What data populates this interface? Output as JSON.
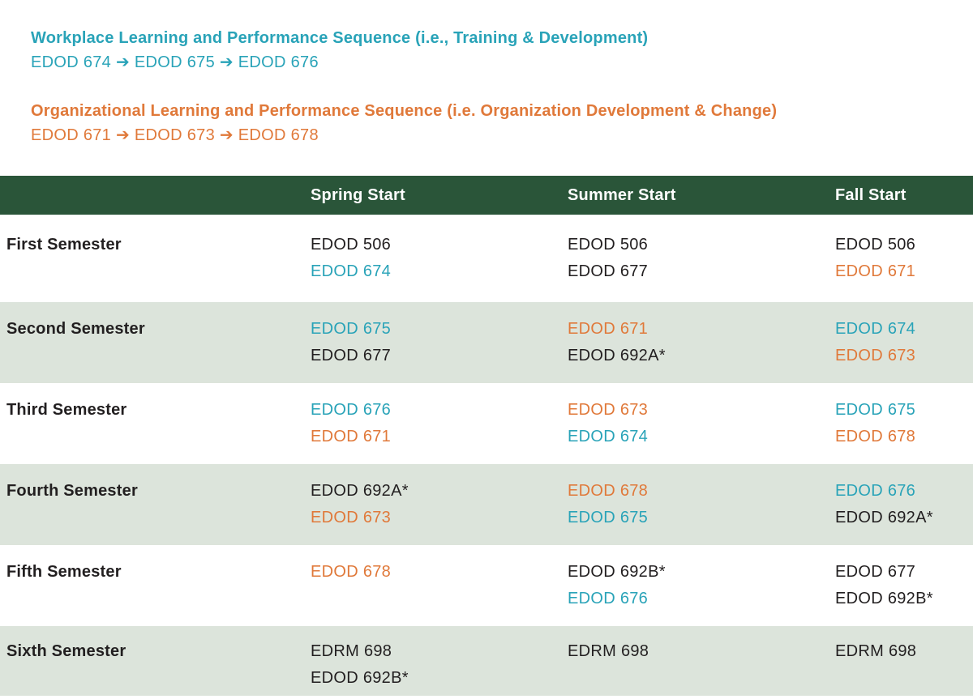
{
  "colors": {
    "sequence_teal": "#29a3b8",
    "sequence_orange": "#e0793a",
    "table_header_bg": "#2a5539",
    "table_header_text": "#ffffff",
    "row_alt_bg": "#dce4db",
    "body_text": "#221f20"
  },
  "sequences": [
    {
      "name": "workplace",
      "title": "Workplace Learning and Performance Sequence (i.e., Training & Development)",
      "course_line": "EDOD 674 ➔ EDOD 675 ➔ EDOD 676",
      "color": "teal"
    },
    {
      "name": "organizational",
      "title": "Organizational Learning and Performance Sequence (i.e. Organization Development & Change)",
      "course_line": "EDOD 671 ➔ EDOD 673 ➔ EDOD 678",
      "color": "orange"
    }
  ],
  "table": {
    "columns": [
      "",
      "Spring Start",
      "Summer Start",
      "Fall Start"
    ],
    "rows": [
      {
        "semester": "First Semester",
        "cells": [
          {
            "courses": [
              {
                "code": "EDOD 506",
                "color": "black"
              },
              {
                "code": "EDOD 674",
                "color": "teal"
              }
            ]
          },
          {
            "courses": [
              {
                "code": "EDOD 506",
                "color": "black"
              },
              {
                "code": "EDOD 677",
                "color": "black"
              }
            ]
          },
          {
            "courses": [
              {
                "code": "EDOD 506",
                "color": "black"
              },
              {
                "code": "EDOD 671",
                "color": "orange"
              }
            ]
          }
        ]
      },
      {
        "semester": "Second Semester",
        "cells": [
          {
            "courses": [
              {
                "code": "EDOD 675",
                "color": "teal"
              },
              {
                "code": "EDOD 677",
                "color": "black"
              }
            ]
          },
          {
            "courses": [
              {
                "code": "EDOD 671",
                "color": "orange"
              },
              {
                "code": "EDOD 692A*",
                "color": "black"
              }
            ]
          },
          {
            "courses": [
              {
                "code": "EDOD 674",
                "color": "teal"
              },
              {
                "code": "EDOD 673",
                "color": "orange"
              }
            ]
          }
        ]
      },
      {
        "semester": "Third Semester",
        "cells": [
          {
            "courses": [
              {
                "code": "EDOD 676",
                "color": "teal"
              },
              {
                "code": "EDOD 671",
                "color": "orange"
              }
            ]
          },
          {
            "courses": [
              {
                "code": "EDOD 673",
                "color": "orange"
              },
              {
                "code": "EDOD 674",
                "color": "teal"
              }
            ]
          },
          {
            "courses": [
              {
                "code": "EDOD 675",
                "color": "teal"
              },
              {
                "code": "EDOD 678",
                "color": "orange"
              }
            ]
          }
        ]
      },
      {
        "semester": "Fourth Semester",
        "cells": [
          {
            "courses": [
              {
                "code": "EDOD 692A*",
                "color": "black"
              },
              {
                "code": "EDOD 673",
                "color": "orange"
              }
            ]
          },
          {
            "courses": [
              {
                "code": "EDOD 678",
                "color": "orange"
              },
              {
                "code": "EDOD 675",
                "color": "teal"
              }
            ]
          },
          {
            "courses": [
              {
                "code": "EDOD 676",
                "color": "teal"
              },
              {
                "code": "EDOD 692A*",
                "color": "black"
              }
            ]
          }
        ]
      },
      {
        "semester": "Fifth Semester",
        "cells": [
          {
            "courses": [
              {
                "code": "EDOD 678",
                "color": "orange"
              }
            ]
          },
          {
            "courses": [
              {
                "code": "EDOD 692B*",
                "color": "black"
              },
              {
                "code": "EDOD 676",
                "color": "teal"
              }
            ]
          },
          {
            "courses": [
              {
                "code": "EDOD 677",
                "color": "black"
              },
              {
                "code": "EDOD 692B*",
                "color": "black"
              }
            ]
          }
        ]
      },
      {
        "semester": "Sixth Semester",
        "cells": [
          {
            "courses": [
              {
                "code": "EDRM 698",
                "color": "black"
              },
              {
                "code": "EDOD 692B*",
                "color": "black"
              }
            ]
          },
          {
            "courses": [
              {
                "code": "EDRM 698",
                "color": "black"
              }
            ]
          },
          {
            "courses": [
              {
                "code": "EDRM 698",
                "color": "black"
              }
            ]
          }
        ]
      }
    ]
  }
}
